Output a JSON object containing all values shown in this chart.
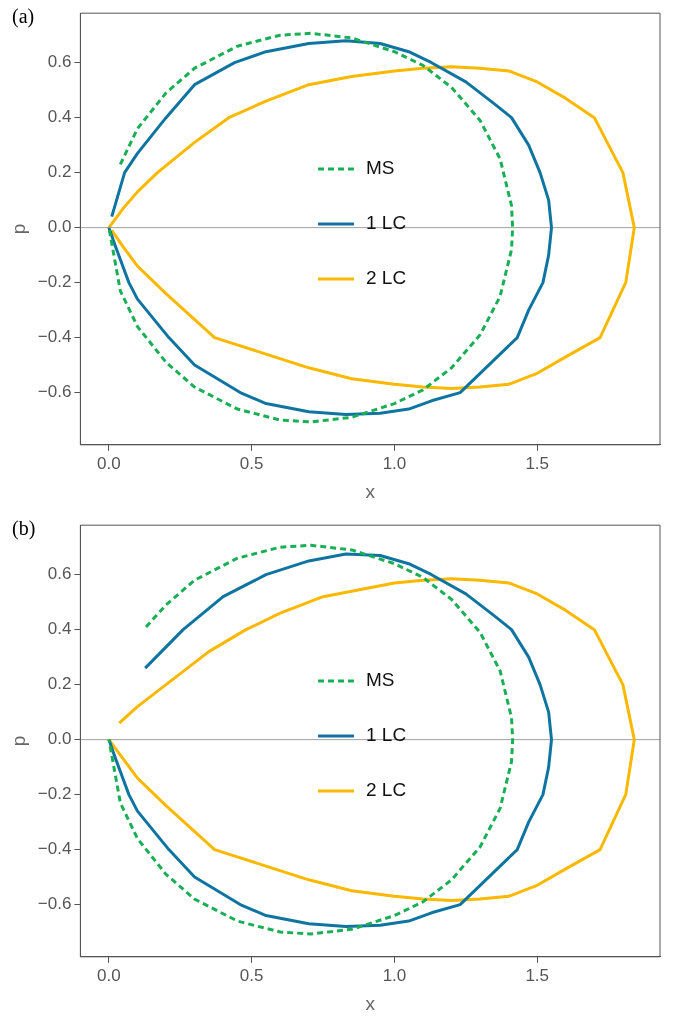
{
  "chart_data": [
    {
      "type": "line",
      "title": "(a)",
      "xlabel": "x",
      "ylabel": "p",
      "xlim": [
        -0.1,
        1.93
      ],
      "ylim": [
        -0.79,
        0.78
      ],
      "xticks": [
        {
          "value": 0,
          "label": "0.0"
        },
        {
          "value": 0.5,
          "label": "0.5"
        },
        {
          "value": 1,
          "label": "1.0"
        },
        {
          "value": 1.5,
          "label": "1.5"
        }
      ],
      "yticks": [
        {
          "value": -0.6,
          "label": "−0.6"
        },
        {
          "value": -0.4,
          "label": "−0.4"
        },
        {
          "value": -0.2,
          "label": "−0.2"
        },
        {
          "value": 0,
          "label": "0.0"
        },
        {
          "value": 0.2,
          "label": "0.2"
        },
        {
          "value": 0.4,
          "label": "0.4"
        },
        {
          "value": 0.6,
          "label": "0.6"
        }
      ],
      "grid": false,
      "legend": "center",
      "marker": "none",
      "ref_lines": [
        {
          "axis": "y",
          "value": 0,
          "color": "#a0a0a0"
        }
      ],
      "series": [
        {
          "name": "MS",
          "color": "#1aae55",
          "line_style": "dashed",
          "x": [
            0.04,
            0.1,
            0.2,
            0.3,
            0.45,
            0.6,
            0.707,
            0.85,
            1.0,
            1.1,
            1.2,
            1.3,
            1.37,
            1.41,
            1.414,
            1.41,
            1.37,
            1.3,
            1.2,
            1.1,
            1.0,
            0.85,
            0.707,
            0.6,
            0.45,
            0.3,
            0.2,
            0.1,
            0.04,
            0
          ],
          "values": [
            0.23,
            0.36,
            0.49,
            0.58,
            0.66,
            0.7,
            0.707,
            0.69,
            0.64,
            0.59,
            0.51,
            0.39,
            0.25,
            0.08,
            0,
            -0.08,
            -0.25,
            -0.39,
            -0.51,
            -0.59,
            -0.64,
            -0.69,
            -0.707,
            -0.7,
            -0.66,
            -0.58,
            -0.49,
            -0.36,
            -0.23,
            0
          ]
        },
        {
          "name": "1 LC",
          "color": "#0f75a0",
          "line_style": "solid",
          "x": [
            0.01,
            0.055,
            0.1,
            0.2,
            0.3,
            0.44,
            0.55,
            0.7,
            0.83,
            0.95,
            1.05,
            1.13,
            1.25,
            1.35,
            1.41,
            1.47,
            1.51,
            1.54,
            1.55,
            1.54,
            1.52,
            1.47,
            1.43,
            1.35,
            1.23,
            1.13,
            1.05,
            0.95,
            0.83,
            0.7,
            0.55,
            0.46,
            0.3,
            0.21,
            0.1,
            0.07,
            0.02,
            0
          ],
          "values": [
            0.04,
            0.2,
            0.27,
            0.4,
            0.52,
            0.6,
            0.64,
            0.67,
            0.68,
            0.67,
            0.64,
            0.6,
            0.53,
            0.45,
            0.4,
            0.3,
            0.2,
            0.1,
            0,
            -0.1,
            -0.2,
            -0.3,
            -0.4,
            -0.48,
            -0.6,
            -0.63,
            -0.66,
            -0.675,
            -0.68,
            -0.67,
            -0.64,
            -0.6,
            -0.5,
            -0.4,
            -0.26,
            -0.2,
            -0.06,
            0
          ]
        },
        {
          "name": "2 LC",
          "color": "#fbb800",
          "line_style": "solid",
          "x": [
            0,
            0.05,
            0.1,
            0.17,
            0.3,
            0.42,
            0.55,
            0.7,
            0.85,
            1.0,
            1.1,
            1.2,
            1.3,
            1.4,
            1.5,
            1.6,
            1.7,
            1.8,
            1.84,
            1.81,
            1.72,
            1.6,
            1.5,
            1.4,
            1.3,
            1.2,
            1.1,
            1.0,
            0.85,
            0.7,
            0.55,
            0.37,
            0.2,
            0.1,
            0.05,
            0.01
          ],
          "values": [
            0,
            0.07,
            0.13,
            0.2,
            0.31,
            0.4,
            0.46,
            0.52,
            0.55,
            0.57,
            0.58,
            0.585,
            0.58,
            0.57,
            0.53,
            0.47,
            0.4,
            0.2,
            0,
            -0.2,
            -0.4,
            -0.47,
            -0.53,
            -0.57,
            -0.58,
            -0.585,
            -0.58,
            -0.57,
            -0.55,
            -0.51,
            -0.46,
            -0.4,
            -0.24,
            -0.14,
            -0.07,
            -0.01
          ]
        }
      ]
    },
    {
      "type": "line",
      "title": "(b)",
      "xlabel": "x",
      "ylabel": "p",
      "xlim": [
        -0.1,
        1.93
      ],
      "ylim": [
        -0.79,
        0.78
      ],
      "xticks": [
        {
          "value": 0,
          "label": "0.0"
        },
        {
          "value": 0.5,
          "label": "0.5"
        },
        {
          "value": 1,
          "label": "1.0"
        },
        {
          "value": 1.5,
          "label": "1.5"
        }
      ],
      "yticks": [
        {
          "value": -0.6,
          "label": "−0.6"
        },
        {
          "value": -0.4,
          "label": "−0.4"
        },
        {
          "value": -0.2,
          "label": "−0.2"
        },
        {
          "value": 0,
          "label": "0.0"
        },
        {
          "value": 0.2,
          "label": "0.2"
        },
        {
          "value": 0.4,
          "label": "0.4"
        },
        {
          "value": 0.6,
          "label": "0.6"
        }
      ],
      "grid": false,
      "legend": "center",
      "marker": "none",
      "ref_lines": [
        {
          "axis": "y",
          "value": 0,
          "color": "#a0a0a0"
        }
      ],
      "series": [
        {
          "name": "MS",
          "color": "#1aae55",
          "line_style": "dashed",
          "x": [
            0.13,
            0.2,
            0.3,
            0.45,
            0.6,
            0.707,
            0.85,
            1.0,
            1.1,
            1.2,
            1.3,
            1.37,
            1.41,
            1.414,
            1.41,
            1.37,
            1.3,
            1.2,
            1.1,
            1.0,
            0.85,
            0.707,
            0.6,
            0.45,
            0.3,
            0.2,
            0.1,
            0.04,
            0
          ],
          "values": [
            0.41,
            0.49,
            0.58,
            0.66,
            0.7,
            0.707,
            0.69,
            0.64,
            0.59,
            0.51,
            0.39,
            0.25,
            0.08,
            0,
            -0.08,
            -0.25,
            -0.39,
            -0.51,
            -0.59,
            -0.64,
            -0.69,
            -0.707,
            -0.7,
            -0.66,
            -0.58,
            -0.49,
            -0.36,
            -0.23,
            0
          ]
        },
        {
          "name": "1 LC",
          "color": "#0f75a0",
          "line_style": "solid",
          "x": [
            0.127,
            0.26,
            0.4,
            0.55,
            0.7,
            0.83,
            0.95,
            1.05,
            1.13,
            1.25,
            1.35,
            1.41,
            1.47,
            1.51,
            1.54,
            1.55,
            1.54,
            1.52,
            1.47,
            1.43,
            1.35,
            1.23,
            1.13,
            1.05,
            0.95,
            0.83,
            0.7,
            0.55,
            0.46,
            0.3,
            0.21,
            0.1,
            0.07,
            0.02,
            0
          ],
          "values": [
            0.26,
            0.4,
            0.52,
            0.6,
            0.65,
            0.675,
            0.67,
            0.64,
            0.6,
            0.53,
            0.45,
            0.4,
            0.3,
            0.2,
            0.1,
            0,
            -0.1,
            -0.2,
            -0.3,
            -0.4,
            -0.48,
            -0.6,
            -0.63,
            -0.66,
            -0.675,
            -0.68,
            -0.67,
            -0.64,
            -0.6,
            -0.5,
            -0.4,
            -0.26,
            -0.2,
            -0.06,
            0
          ]
        },
        {
          "name": "2 LC",
          "color": "#fbb800",
          "line_style": "solid",
          "x": [
            0.036,
            0.1,
            0.2,
            0.35,
            0.48,
            0.6,
            0.75,
            0.9,
            1.0,
            1.1,
            1.2,
            1.3,
            1.4,
            1.5,
            1.6,
            1.7,
            1.8,
            1.84,
            1.81,
            1.72,
            1.6,
            1.5,
            1.4,
            1.3,
            1.2,
            1.1,
            1.0,
            0.85,
            0.7,
            0.55,
            0.37,
            0.2,
            0.1,
            0.05,
            0
          ],
          "values": [
            0.06,
            0.12,
            0.2,
            0.32,
            0.4,
            0.46,
            0.52,
            0.55,
            0.57,
            0.58,
            0.585,
            0.58,
            0.57,
            0.53,
            0.47,
            0.4,
            0.2,
            0,
            -0.2,
            -0.4,
            -0.47,
            -0.53,
            -0.57,
            -0.58,
            -0.585,
            -0.58,
            -0.57,
            -0.55,
            -0.51,
            -0.46,
            -0.4,
            -0.24,
            -0.14,
            -0.07,
            0
          ]
        }
      ]
    }
  ]
}
